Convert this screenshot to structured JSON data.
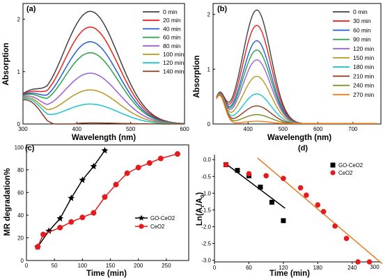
{
  "chart_data": [
    {
      "type": "line",
      "panel_label": "(a)",
      "xlabel": "Wavelength (nm)",
      "ylabel": "Absorption",
      "xlim": [
        300,
        600
      ],
      "ylim": [
        0,
        2.3
      ],
      "xticks": [
        300,
        400,
        500,
        600
      ],
      "yticks": [
        0,
        1,
        2
      ],
      "legend_position": "top-right",
      "peak_x": 425,
      "series": [
        {
          "name": "0 min",
          "color": "#404040",
          "peak": 2.15,
          "base": 0.52
        },
        {
          "name": "20 min",
          "color": "#e8211c",
          "peak": 1.85,
          "base": 0.52
        },
        {
          "name": "40 min",
          "color": "#1e5fd6",
          "peak": 1.57,
          "base": 0.52
        },
        {
          "name": "60 min",
          "color": "#28a048",
          "peak": 1.36,
          "base": 0.52
        },
        {
          "name": "80 min",
          "color": "#9b5fd6",
          "peak": 0.97,
          "base": 0.52
        },
        {
          "name": "100 min",
          "color": "#b8961e",
          "peak": 0.65,
          "base": 0.52
        },
        {
          "name": "120 min",
          "color": "#19c3d2",
          "peak": 0.38,
          "base": 0.52
        },
        {
          "name": "140 min",
          "color": "#8b3a1a",
          "peak": 0.02,
          "base": 0.52
        }
      ]
    },
    {
      "type": "line",
      "panel_label": "(b)",
      "xlabel": "Wavelength (nm)",
      "ylabel": "Absorption",
      "xlim": [
        300,
        780
      ],
      "ylim": [
        0,
        2.2
      ],
      "xticks": [
        400,
        500,
        600,
        700
      ],
      "yticks": [
        0,
        1,
        2
      ],
      "legend_position": "top-right",
      "peak_x": 425,
      "series": [
        {
          "name": "0 min",
          "color": "#404040",
          "peak": 2.08,
          "base": 0.58
        },
        {
          "name": "30 min",
          "color": "#e8211c",
          "peak": 1.8,
          "base": 0.58
        },
        {
          "name": "60 min",
          "color": "#1e5fd6",
          "peak": 1.52,
          "base": 0.58
        },
        {
          "name": "90 min",
          "color": "#28a048",
          "peak": 1.35,
          "base": 0.58
        },
        {
          "name": "120 min",
          "color": "#9b5fd6",
          "peak": 1.17,
          "base": 0.58
        },
        {
          "name": "150 min",
          "color": "#b8961e",
          "peak": 0.87,
          "base": 0.58
        },
        {
          "name": "180 min",
          "color": "#19c3d2",
          "peak": 0.55,
          "base": 0.58
        },
        {
          "name": "210 min",
          "color": "#8b3a1a",
          "peak": 0.33,
          "base": 0.58
        },
        {
          "name": "240 min",
          "color": "#7a8a1a",
          "peak": 0.17,
          "base": 0.58
        },
        {
          "name": "270 min",
          "color": "#ff7a10",
          "peak": 0.05,
          "base": 0.58
        }
      ]
    },
    {
      "type": "line",
      "panel_label": "(c)",
      "xlabel": "Time (min)",
      "ylabel": "MR degradation%",
      "xlim": [
        0,
        290
      ],
      "ylim": [
        0,
        102
      ],
      "xticks": [
        0,
        50,
        100,
        150,
        200,
        250
      ],
      "yticks": [
        0,
        20,
        40,
        60,
        80,
        100
      ],
      "legend_position": "bottom-right",
      "series": [
        {
          "name": "GO-CeO2",
          "color": "#000000",
          "marker": "star",
          "x": [
            20,
            40,
            60,
            80,
            100,
            120,
            140
          ],
          "y": [
            12,
            26,
            37,
            55,
            71,
            83,
            97
          ]
        },
        {
          "name": "CeO2",
          "color": "#e41a1c",
          "marker": "circle",
          "x": [
            20,
            30,
            60,
            80,
            100,
            120,
            140,
            160,
            180,
            200,
            220,
            240,
            270
          ],
          "y": [
            12,
            23,
            29,
            34,
            38,
            42,
            56,
            67,
            77,
            82,
            86,
            90,
            94
          ]
        }
      ]
    },
    {
      "type": "scatter",
      "panel_label": "(d)",
      "xlabel": "Time (min)",
      "ylabel": "Ln(At/A0)",
      "ylabel_parts": {
        "pre": "Ln(A",
        "sub1": "t",
        "mid": "/A",
        "sub2": "0",
        "post": ")"
      },
      "xlim": [
        0,
        290
      ],
      "ylim": [
        -3.05,
        0.15
      ],
      "xticks": [
        0,
        60,
        120,
        180,
        240
      ],
      "yticks": [
        0.0,
        -0.5,
        -1.0,
        -1.5,
        -2.0,
        -2.5,
        -3.0
      ],
      "ytick_labels": [
        "0.0",
        "-0.5",
        "-1.0",
        "-1.5",
        "-2.0",
        "-2.5",
        "-3.0"
      ],
      "extra_xtick": {
        "value": 300,
        "label": "300"
      },
      "legend_position": "top-right",
      "series": [
        {
          "name": "GO-CeO2",
          "color": "#000000",
          "marker": "square",
          "x": [
            20,
            40,
            60,
            80,
            100,
            120
          ],
          "y": [
            -0.15,
            -0.32,
            -0.48,
            -0.82,
            -1.27,
            -1.82
          ],
          "fit": {
            "x": [
              18,
              123
            ],
            "y": [
              -0.1,
              -1.45
            ]
          }
        },
        {
          "name": "CeO2",
          "color": "#e41a1c",
          "marker": "circle",
          "x": [
            20,
            60,
            90,
            120,
            150,
            160,
            180,
            190,
            210,
            230,
            250,
            270
          ],
          "y": [
            -0.15,
            -0.42,
            -0.48,
            -0.56,
            -0.84,
            -1.06,
            -1.35,
            -1.55,
            -1.98,
            -2.35,
            -3.05,
            -3.05
          ],
          "fit": {
            "x": [
              75,
              292
            ],
            "y": [
              0.05,
              -3.1
            ]
          }
        }
      ]
    }
  ]
}
